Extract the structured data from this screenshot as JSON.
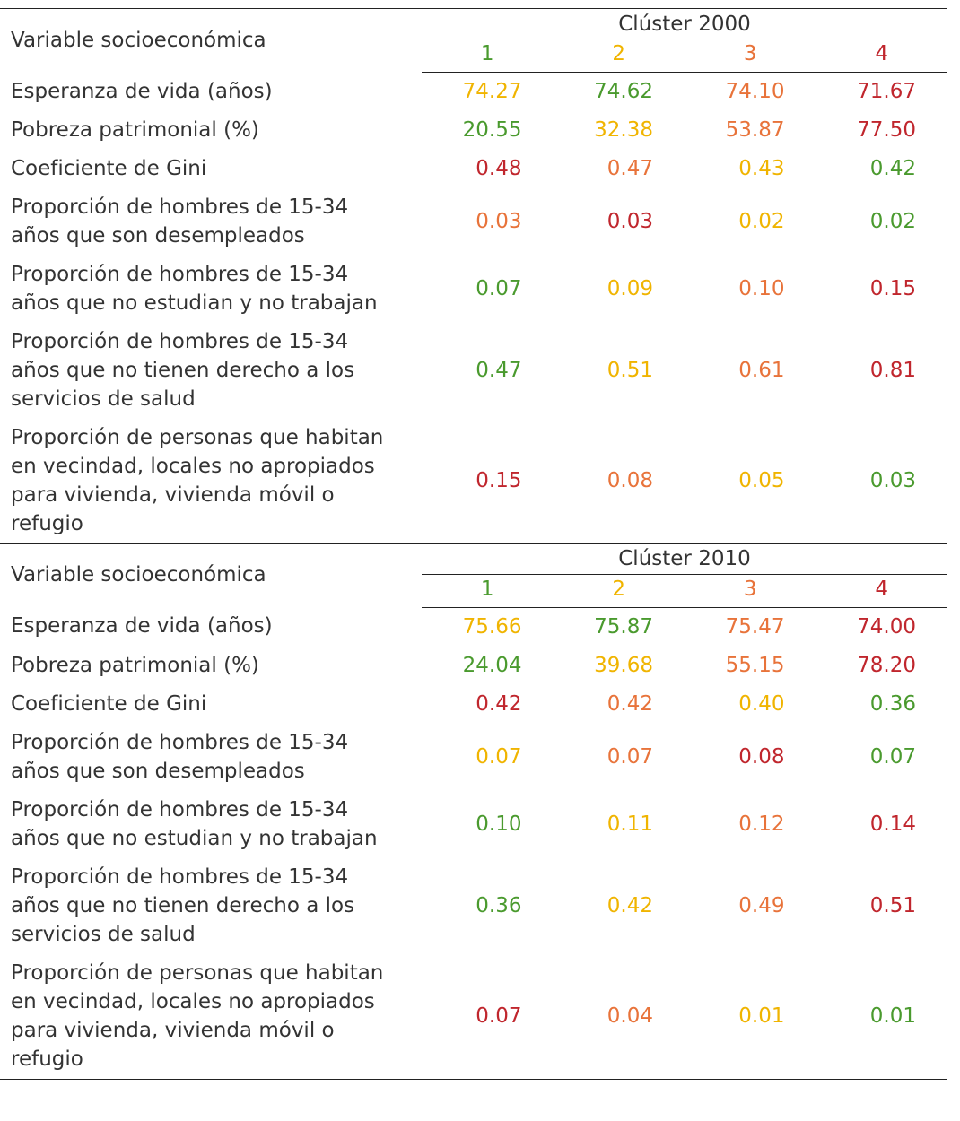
{
  "tables": [
    {
      "header_label": "Variable socioeconómica",
      "group_title": "Clúster 2000",
      "columns": [
        {
          "label": "1",
          "color": "#4a9a2e"
        },
        {
          "label": "2",
          "color": "#f0b400"
        },
        {
          "label": "3",
          "color": "#e8733a"
        },
        {
          "label": "4",
          "color": "#c0262d"
        }
      ],
      "rows": [
        {
          "label": "Esperanza de vida (años)",
          "cells": [
            "74.27",
            "74.62",
            "74.10",
            "71.67"
          ],
          "colors": [
            "#f0b400",
            "#4a9a2e",
            "#e8733a",
            "#c0262d"
          ]
        },
        {
          "label": "Pobreza patrimonial (%)",
          "cells": [
            "20.55",
            "32.38",
            "53.87",
            "77.50"
          ],
          "colors": [
            "#4a9a2e",
            "#f0b400",
            "#e8733a",
            "#c0262d"
          ]
        },
        {
          "label": "Coeficiente de Gini",
          "cells": [
            "0.48",
            "0.47",
            "0.43",
            "0.42"
          ],
          "colors": [
            "#c0262d",
            "#e8733a",
            "#f0b400",
            "#4a9a2e"
          ]
        },
        {
          "label": "Proporción de hombres de 15-34\naños que son desempleados",
          "cells": [
            "0.03",
            "0.03",
            "0.02",
            "0.02"
          ],
          "colors": [
            "#e8733a",
            "#c0262d",
            "#f0b400",
            "#4a9a2e"
          ]
        },
        {
          "label": "Proporción de hombres de 15-34\naños que no estudian y no trabajan",
          "cells": [
            "0.07",
            "0.09",
            "0.10",
            "0.15"
          ],
          "colors": [
            "#4a9a2e",
            "#f0b400",
            "#e8733a",
            "#c0262d"
          ]
        },
        {
          "label": "Proporción de hombres de 15-34\naños que no tienen derecho a los\nservicios de salud",
          "cells": [
            "0.47",
            "0.51",
            "0.61",
            "0.81"
          ],
          "colors": [
            "#4a9a2e",
            "#f0b400",
            "#e8733a",
            "#c0262d"
          ]
        },
        {
          "label": "Proporción de personas que habitan\nen vecindad, locales no apropiados\npara vivienda, vivienda móvil o\nrefugio",
          "cells": [
            "0.15",
            "0.08",
            "0.05",
            "0.03"
          ],
          "colors": [
            "#c0262d",
            "#e8733a",
            "#f0b400",
            "#4a9a2e"
          ]
        }
      ]
    },
    {
      "header_label": "Variable socioeconómica",
      "group_title": "Clúster 2010",
      "columns": [
        {
          "label": "1",
          "color": "#4a9a2e"
        },
        {
          "label": "2",
          "color": "#f0b400"
        },
        {
          "label": "3",
          "color": "#e8733a"
        },
        {
          "label": "4",
          "color": "#c0262d"
        }
      ],
      "rows": [
        {
          "label": "Esperanza de vida (años)",
          "cells": [
            "75.66",
            "75.87",
            "75.47",
            "74.00"
          ],
          "colors": [
            "#f0b400",
            "#4a9a2e",
            "#e8733a",
            "#c0262d"
          ]
        },
        {
          "label": "Pobreza patrimonial (%)",
          "cells": [
            "24.04",
            "39.68",
            "55.15",
            "78.20"
          ],
          "colors": [
            "#4a9a2e",
            "#f0b400",
            "#e8733a",
            "#c0262d"
          ]
        },
        {
          "label": "Coeficiente de Gini",
          "cells": [
            "0.42",
            "0.42",
            "0.40",
            "0.36"
          ],
          "colors": [
            "#c0262d",
            "#e8733a",
            "#f0b400",
            "#4a9a2e"
          ]
        },
        {
          "label": "Proporción de hombres de 15-34\naños que son desempleados",
          "cells": [
            "0.07",
            "0.07",
            "0.08",
            "0.07"
          ],
          "colors": [
            "#f0b400",
            "#e8733a",
            "#c0262d",
            "#4a9a2e"
          ]
        },
        {
          "label": "Proporción de hombres de 15-34\naños que no estudian y no trabajan",
          "cells": [
            "0.10",
            "0.11",
            "0.12",
            "0.14"
          ],
          "colors": [
            "#4a9a2e",
            "#f0b400",
            "#e8733a",
            "#c0262d"
          ]
        },
        {
          "label": "Proporción de hombres de 15-34\naños que no tienen derecho a los\nservicios de salud",
          "cells": [
            "0.36",
            "0.42",
            "0.49",
            "0.51"
          ],
          "colors": [
            "#4a9a2e",
            "#f0b400",
            "#e8733a",
            "#c0262d"
          ]
        },
        {
          "label": "Proporción de personas que habitan\nen vecindad, locales no apropiados\npara vivienda, vivienda móvil o\nrefugio",
          "cells": [
            "0.07",
            "0.04",
            "0.01",
            "0.01"
          ],
          "colors": [
            "#c0262d",
            "#e8733a",
            "#f0b400",
            "#4a9a2e"
          ]
        }
      ]
    }
  ]
}
